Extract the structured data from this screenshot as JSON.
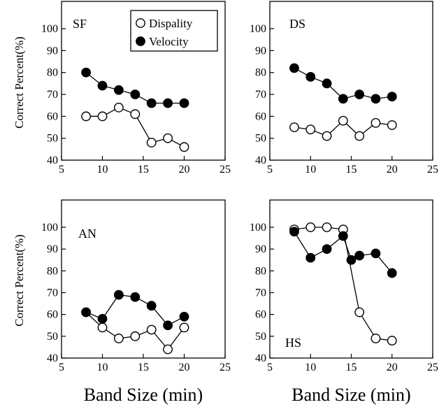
{
  "legend": {
    "open_label": "Dispality",
    "filled_label": "Velocity"
  },
  "chart_data": [
    {
      "type": "line",
      "panel": "SF",
      "x": [
        8,
        10,
        12,
        14,
        16,
        18,
        20
      ],
      "series": [
        {
          "name": "Dispality",
          "marker": "open",
          "values": [
            60,
            60,
            64,
            61,
            48,
            50,
            46
          ]
        },
        {
          "name": "Velocity",
          "marker": "filled",
          "values": [
            80,
            74,
            72,
            70,
            66,
            66,
            66
          ]
        }
      ],
      "xlim": [
        5,
        25
      ],
      "ylim": [
        40,
        100
      ],
      "xticks": [
        "5",
        "10",
        "15",
        "20",
        "25"
      ],
      "yticks": [
        "40",
        "50",
        "60",
        "70",
        "80",
        "90",
        "100"
      ],
      "ylabel": "Correct Percent(%)",
      "xlabel": "",
      "legend_position": "top-right"
    },
    {
      "type": "line",
      "panel": "DS",
      "x": [
        8,
        10,
        12,
        14,
        16,
        18,
        20
      ],
      "series": [
        {
          "name": "Dispality",
          "marker": "open",
          "values": [
            55,
            54,
            51,
            58,
            51,
            57,
            56
          ]
        },
        {
          "name": "Velocity",
          "marker": "filled",
          "values": [
            82,
            78,
            75,
            68,
            70,
            68,
            69
          ]
        }
      ],
      "xlim": [
        5,
        25
      ],
      "ylim": [
        40,
        100
      ],
      "xticks": [
        "5",
        "10",
        "15",
        "20",
        "25"
      ],
      "yticks": [
        "40",
        "50",
        "60",
        "70",
        "80",
        "90",
        "100"
      ],
      "ylabel": "",
      "xlabel": ""
    },
    {
      "type": "line",
      "panel": "AN",
      "x": [
        8,
        10,
        12,
        14,
        16,
        18,
        20
      ],
      "series": [
        {
          "name": "Dispality",
          "marker": "open",
          "values": [
            61,
            54,
            49,
            50,
            53,
            44,
            54
          ]
        },
        {
          "name": "Velocity",
          "marker": "filled",
          "values": [
            61,
            58,
            69,
            68,
            64,
            55,
            59
          ]
        }
      ],
      "xlim": [
        5,
        25
      ],
      "ylim": [
        40,
        100
      ],
      "xticks": [
        "5",
        "10",
        "15",
        "20",
        "25"
      ],
      "yticks": [
        "40",
        "50",
        "60",
        "70",
        "80",
        "90",
        "100"
      ],
      "ylabel": "Correct Percent(%)",
      "xlabel": "Band Size (min)"
    },
    {
      "type": "line",
      "panel": "HS",
      "x": [
        8,
        10,
        12,
        14,
        16,
        18,
        20
      ],
      "series": [
        {
          "name": "Dispality",
          "marker": "open",
          "values": [
            99,
            100,
            100,
            99,
            61,
            49,
            48
          ]
        },
        {
          "name": "Velocity",
          "marker": "filled",
          "values": [
            98,
            86,
            90,
            96,
            85,
            87,
            88,
            79
          ],
          "x": [
            8,
            10,
            12,
            14,
            15,
            16,
            18,
            20
          ]
        }
      ],
      "xlim": [
        5,
        25
      ],
      "ylim": [
        40,
        100
      ],
      "xticks": [
        "5",
        "10",
        "15",
        "20",
        "25"
      ],
      "yticks": [
        "40",
        "50",
        "60",
        "70",
        "80",
        "90",
        "100"
      ],
      "ylabel": "",
      "xlabel": "Band Size (min)"
    }
  ]
}
